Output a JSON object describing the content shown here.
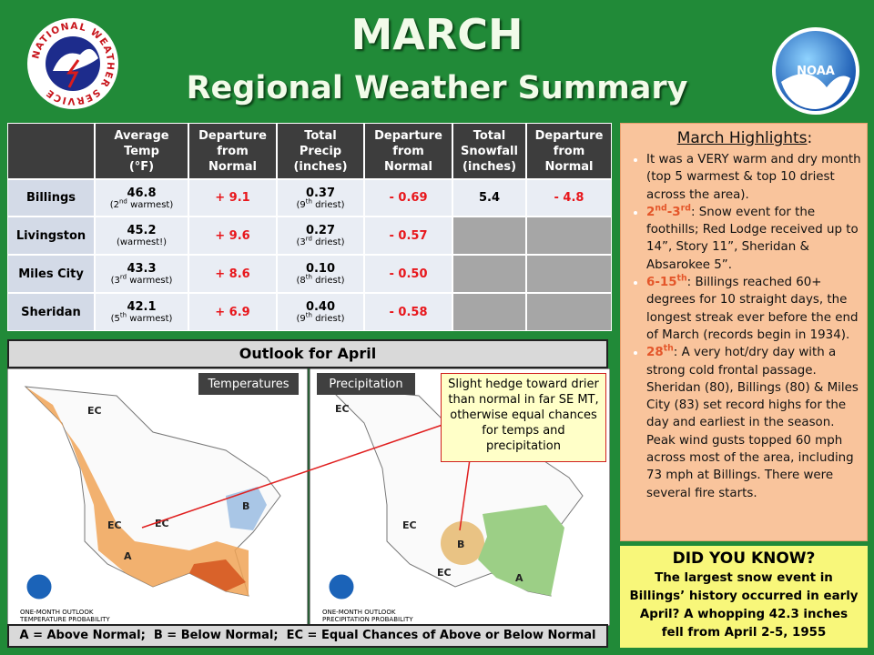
{
  "header": {
    "title": "MARCH",
    "subtitle": "Regional Weather Summary",
    "left_logo": "NATIONAL WEATHER SERVICE",
    "right_logo": "NOAA"
  },
  "table": {
    "columns": [
      [
        "Average",
        "Temp",
        "(°F)"
      ],
      [
        "Departure",
        "from",
        "Normal"
      ],
      [
        "Total",
        "Precip",
        "(inches)"
      ],
      [
        "Departure",
        "from",
        "Normal"
      ],
      [
        "Total",
        "Snowfall",
        "(inches)"
      ],
      [
        "Departure",
        "from",
        "Normal"
      ]
    ],
    "rows": [
      {
        "station": "Billings",
        "temp": "46.8",
        "temp_note": [
          "(2",
          {
            "sup": "nd"
          },
          " warmest)"
        ],
        "temp_dep": "+ 9.1",
        "precip": "0.37",
        "precip_note": [
          "(9",
          {
            "sup": "th"
          },
          " driest)"
        ],
        "precip_dep": "- 0.69",
        "snow": "5.4",
        "snow_dep": "- 4.8"
      },
      {
        "station": "Livingston",
        "temp": "45.2",
        "temp_note": [
          "(warmest!)"
        ],
        "temp_dep": "+ 9.6",
        "precip": "0.27",
        "precip_note": [
          "(3",
          {
            "sup": "rd"
          },
          " driest)"
        ],
        "precip_dep": "- 0.57"
      },
      {
        "station": "Miles City",
        "temp": "43.3",
        "temp_note": [
          "(3",
          {
            "sup": "rd"
          },
          " warmest)"
        ],
        "temp_dep": "+ 8.6",
        "precip": "0.10",
        "precip_note": [
          "(8",
          {
            "sup": "th"
          },
          " driest)"
        ],
        "precip_dep": "- 0.50"
      },
      {
        "station": "Sheridan",
        "temp": "42.1",
        "temp_note": [
          "(5",
          {
            "sup": "th"
          },
          " warmest)"
        ],
        "temp_dep": "+ 6.9",
        "precip": "0.40",
        "precip_note": [
          "(9",
          {
            "sup": "th"
          },
          " driest)"
        ],
        "precip_dep": "- 0.58"
      }
    ]
  },
  "outlook": {
    "title": "Outlook for April",
    "maps": [
      {
        "label": "Temperatures",
        "caption": [
          "ONE-MONTH OUTLOOK",
          "TEMPERATURE PROBABILITY"
        ],
        "labels": [
          "EC",
          "EC",
          "EC",
          "B",
          "A"
        ]
      },
      {
        "label": "Precipitation",
        "caption": [
          "ONE-MONTH OUTLOOK",
          "PRECIPITATION PROBABILITY"
        ],
        "labels": [
          "EC",
          "EC",
          "B",
          "EC",
          "A"
        ]
      }
    ],
    "callout": "Slight hedge toward drier than normal in far SE MT, otherwise equal chances for temps and precipitation",
    "legend": "A = Above Normal;  B = Below Normal;  EC = Equal Chances of Above or Below Normal"
  },
  "highlights": {
    "title": "March Highlights",
    "title_suffix": ":",
    "bullets": [
      [
        "It was a VERY warm and dry month  (top 5 warmest & top 10 driest across the area)."
      ],
      [
        {
          "em": "2"
        },
        {
          "em_sup": "nd"
        },
        {
          "em": "-3"
        },
        {
          "em_sup": "rd"
        },
        ": Snow event for the foothills; Red Lodge received up to 14”, Story 11”, Sheridan & Absarokee 5”."
      ],
      [
        {
          "em": "6-15"
        },
        {
          "em_sup": "th"
        },
        ": Billings reached 60+ degrees for 10 straight days, the longest streak ever before the end of March (records begin in 1934)."
      ],
      [
        {
          "em": "28"
        },
        {
          "em_sup": "th"
        },
        ": A very hot/dry day with a strong cold frontal passage. Sheridan (80), Billings (80) & Miles City (83) set record highs for the day and earliest in the season.  Peak wind gusts topped 60 mph across most of the area, including 73 mph at Billings. There were several fire starts."
      ]
    ]
  },
  "did_you_know": {
    "title": "DID YOU KNOW?",
    "text": "The largest snow event in Billings’ history occurred in early April? A whopping 42.3 inches fell from April 2-5, 1955"
  }
}
